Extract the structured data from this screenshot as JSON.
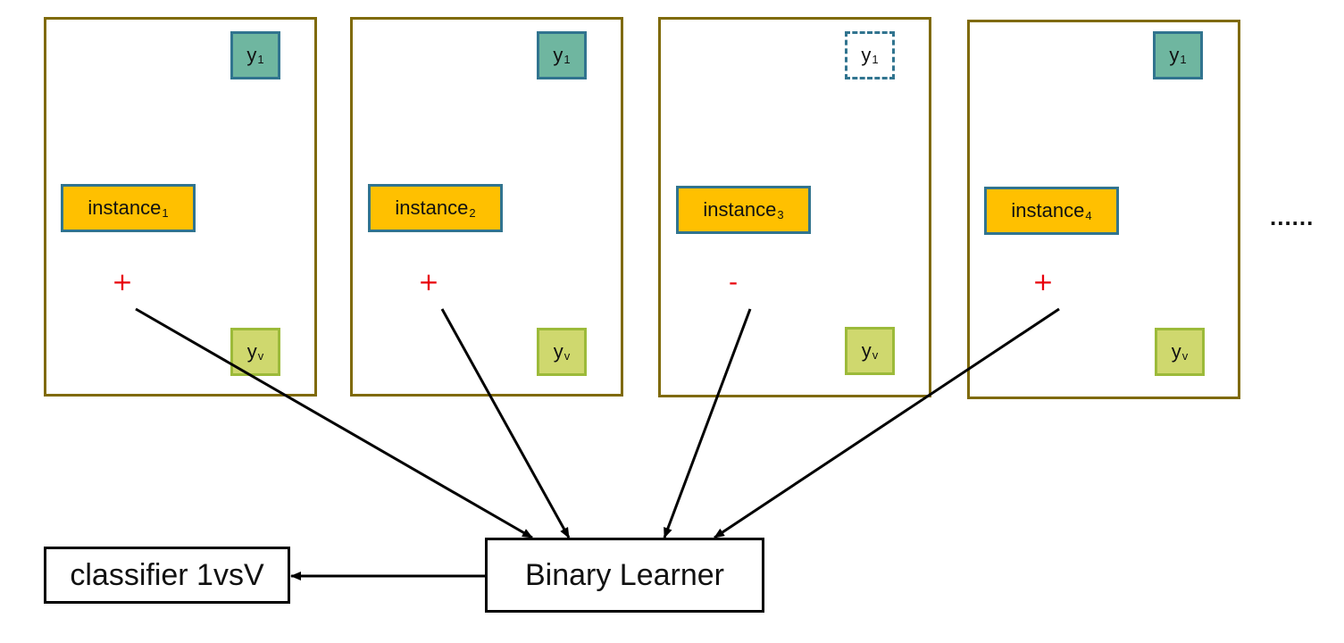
{
  "panels": [
    {
      "top_label": {
        "base": "y",
        "sub": "1",
        "style": "solid"
      },
      "instance": {
        "base": "instance",
        "sub": "1"
      },
      "sign": "+",
      "bottom_label": {
        "base": "y",
        "sub": "v"
      }
    },
    {
      "top_label": {
        "base": "y",
        "sub": "1",
        "style": "solid"
      },
      "instance": {
        "base": "instance",
        "sub": "2"
      },
      "sign": "+",
      "bottom_label": {
        "base": "y",
        "sub": "v"
      }
    },
    {
      "top_label": {
        "base": "y",
        "sub": "1",
        "style": "dashed"
      },
      "instance": {
        "base": "instance",
        "sub": "3"
      },
      "sign": "-",
      "bottom_label": {
        "base": "y",
        "sub": "v"
      }
    },
    {
      "top_label": {
        "base": "y",
        "sub": "1",
        "style": "solid"
      },
      "instance": {
        "base": "instance",
        "sub": "4"
      },
      "sign": "+",
      "bottom_label": {
        "base": "y",
        "sub": "v"
      }
    }
  ],
  "ellipsis": "......",
  "learner": "Binary Learner",
  "classifier": "classifier 1vsV",
  "colors": {
    "panel_border": "#7f6a08",
    "label_top_fill": "#6fb6a0",
    "label_border": "#31748f",
    "label_bottom_fill": "#cfd86e",
    "instance_fill": "#ffc000",
    "sign": "#e8000b"
  }
}
